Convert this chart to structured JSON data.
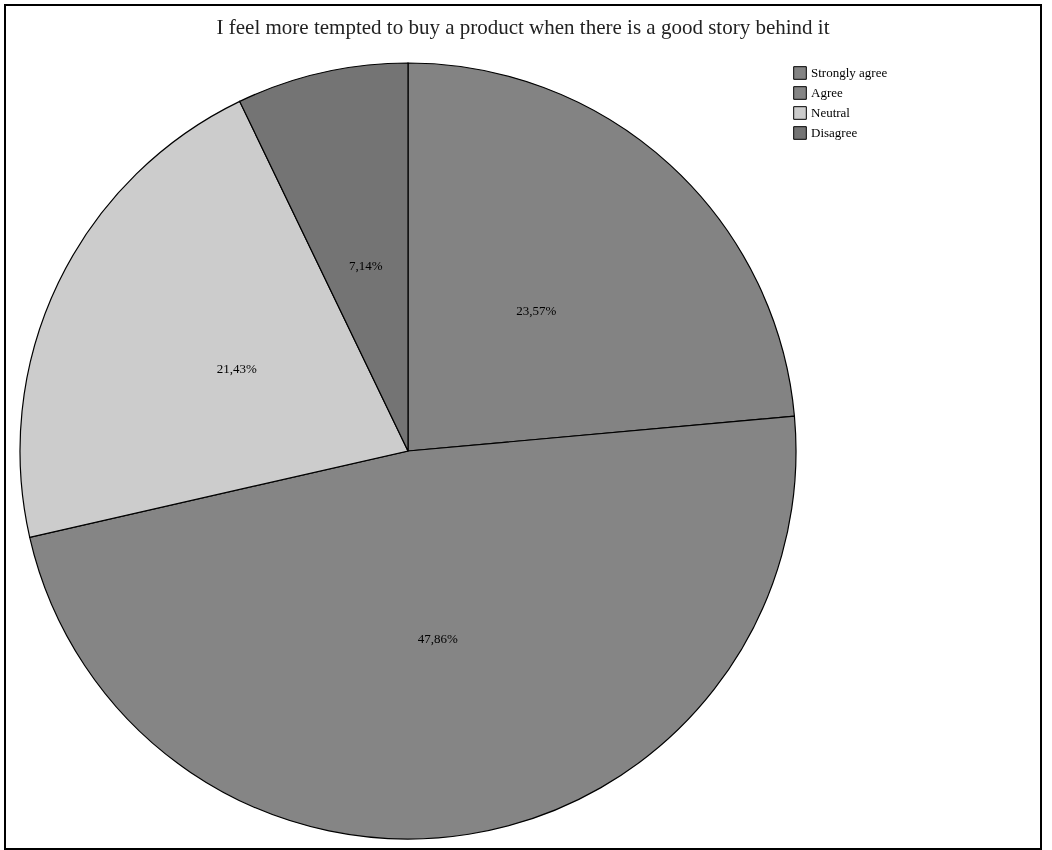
{
  "chart_data": {
    "type": "pie",
    "title": "I feel more tempted to buy a product when there is a good story behind it",
    "categories": [
      "Strongly agree",
      "Agree",
      "Neutral",
      "Disagree"
    ],
    "values": [
      23.57,
      47.86,
      21.43,
      7.14
    ],
    "colors": [
      "#838383",
      "#858585",
      "#cccccc",
      "#747474"
    ],
    "value_labels": [
      "23,57%",
      "47,86%",
      "21,43%",
      "7,14%"
    ],
    "legend": "top right"
  }
}
